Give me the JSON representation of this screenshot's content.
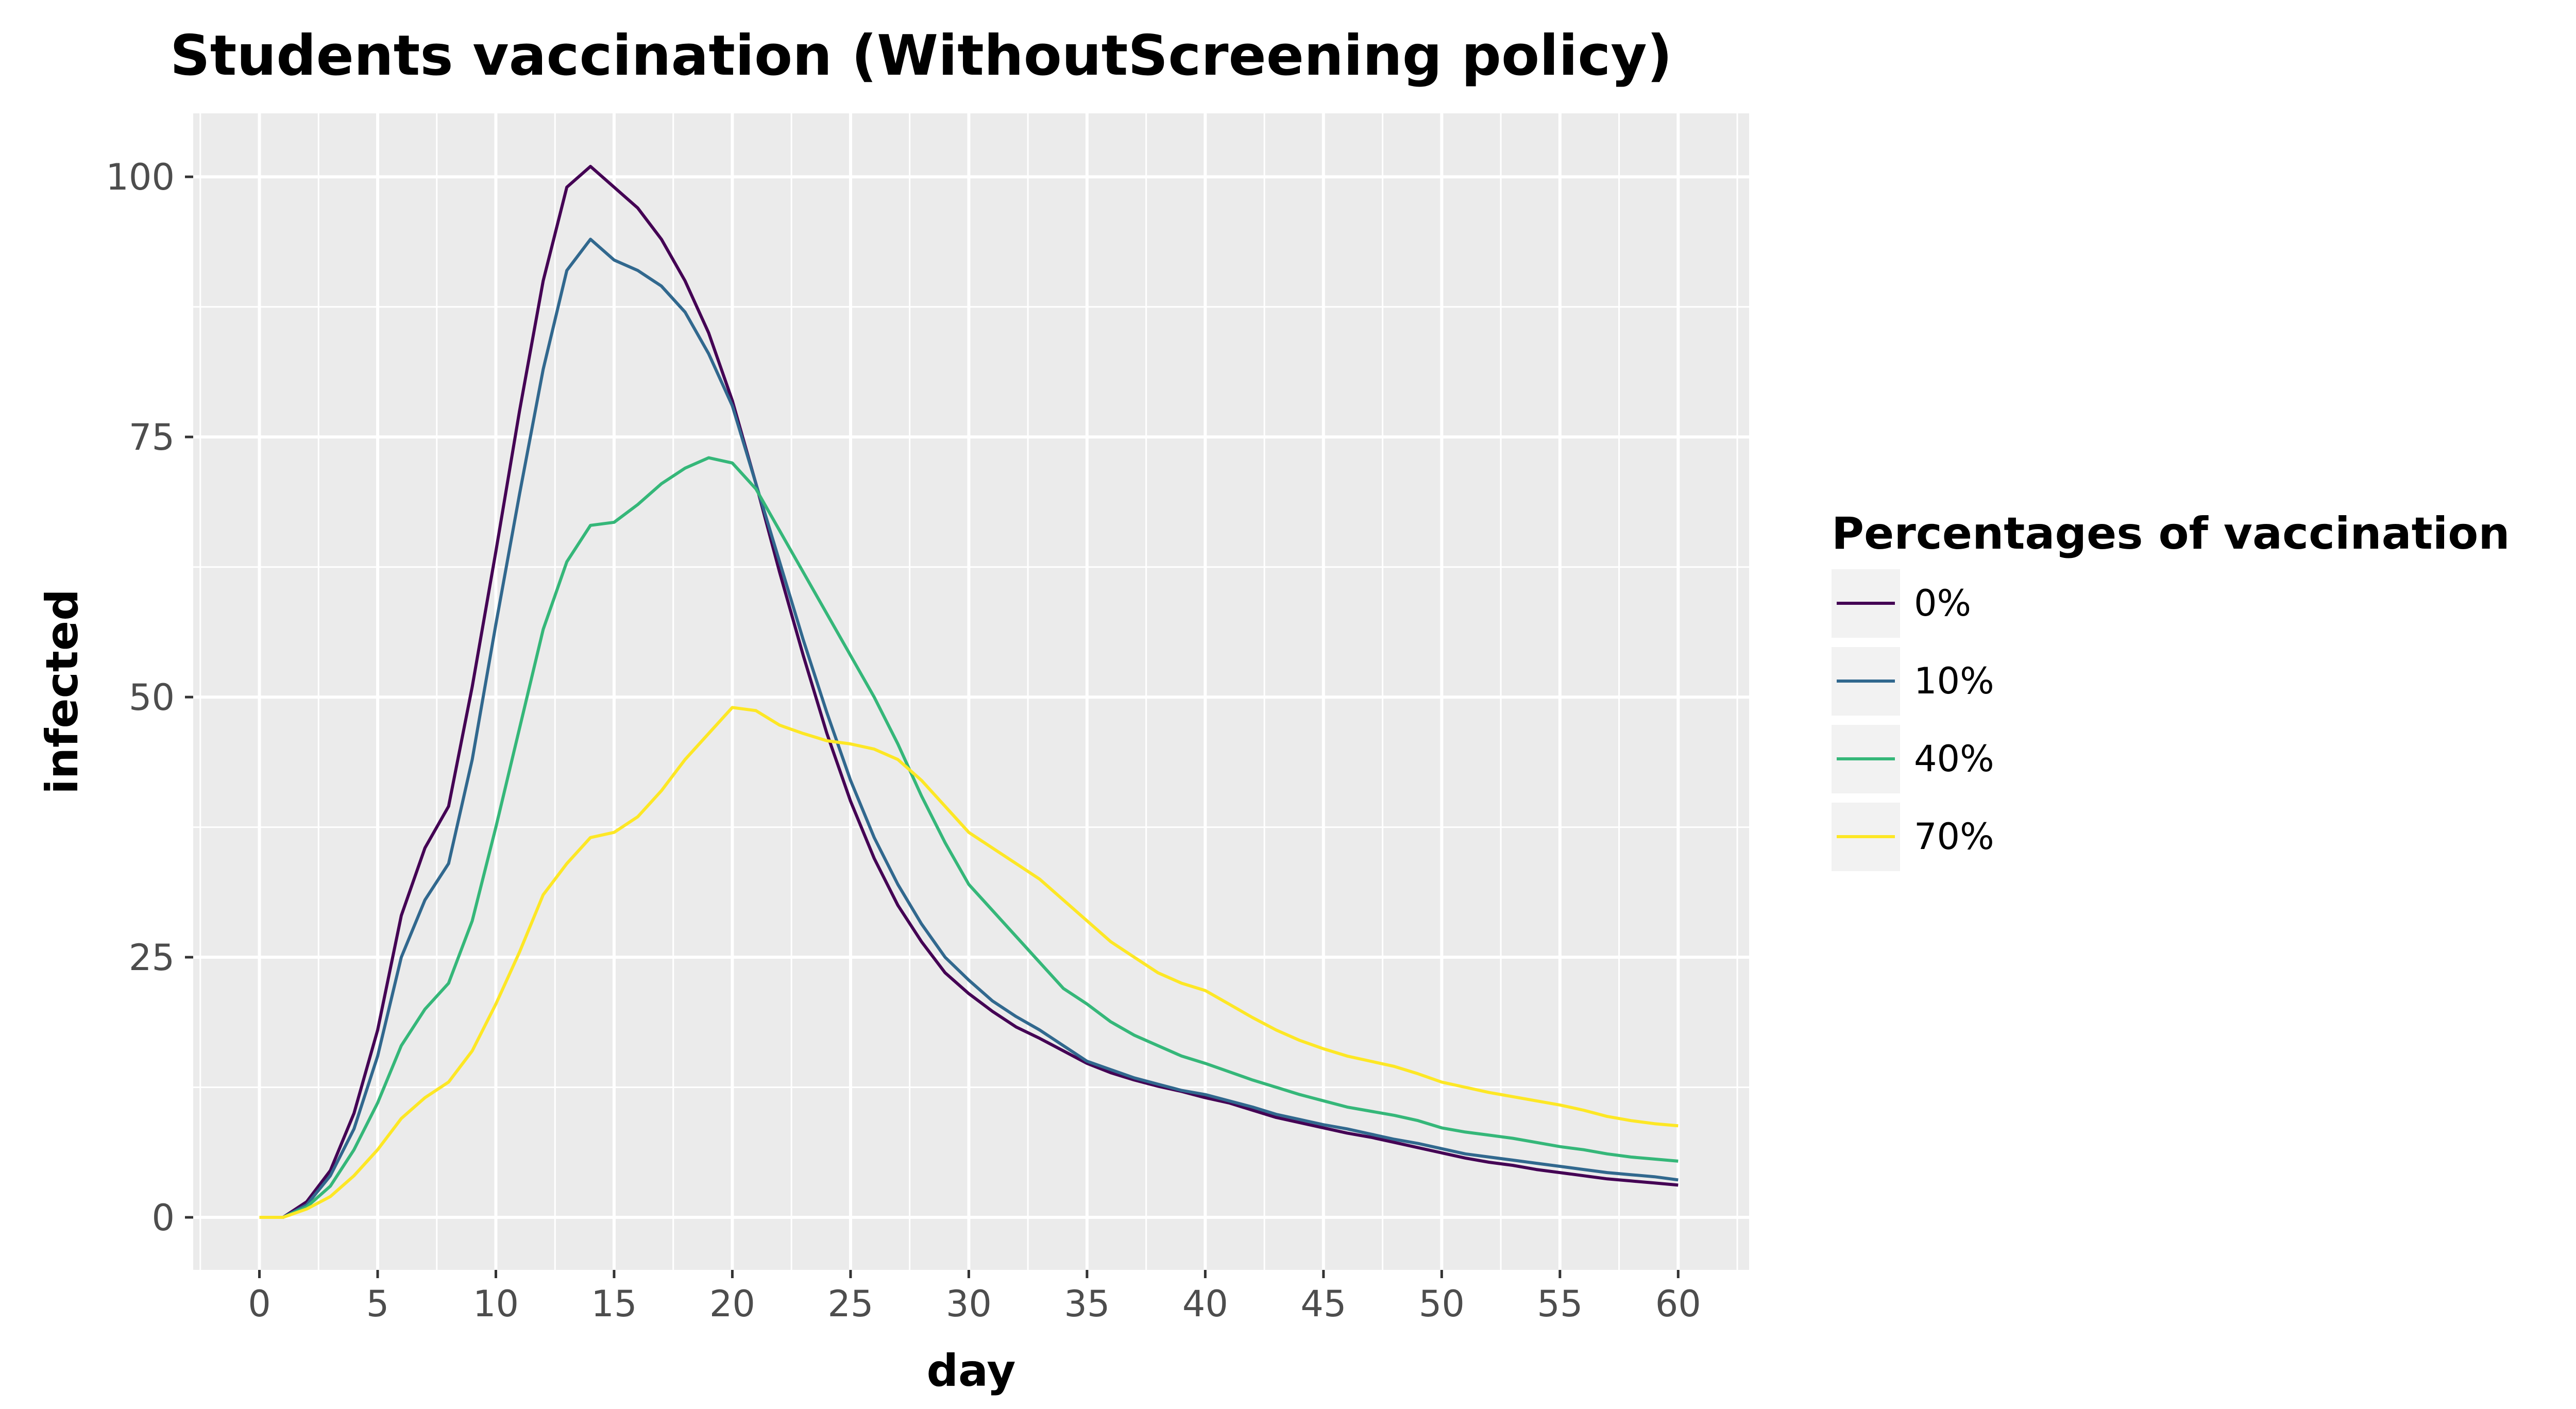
{
  "chart_data": {
    "type": "line",
    "title": "Students vaccination (WithoutScreening policy)",
    "xlabel": "day",
    "ylabel": "infected",
    "xlim": [
      -2.8,
      63.0
    ],
    "ylim": [
      -5.05,
      106.1
    ],
    "x_ticks": [
      0,
      5,
      10,
      15,
      20,
      25,
      30,
      35,
      40,
      45,
      50,
      55,
      60
    ],
    "y_ticks": [
      0,
      25,
      50,
      75,
      100
    ],
    "grid": true,
    "legend": {
      "title": "Percentages of vaccination",
      "position": "right"
    },
    "x": [
      0,
      1,
      2,
      3,
      4,
      5,
      6,
      7,
      8,
      9,
      10,
      11,
      12,
      13,
      14,
      15,
      16,
      17,
      18,
      19,
      20,
      21,
      22,
      23,
      24,
      25,
      26,
      27,
      28,
      29,
      30,
      31,
      32,
      33,
      34,
      35,
      36,
      37,
      38,
      39,
      40,
      41,
      42,
      43,
      44,
      45,
      46,
      47,
      48,
      49,
      50,
      51,
      52,
      53,
      54,
      55,
      56,
      57,
      58,
      59,
      60
    ],
    "series": [
      {
        "name": "0%",
        "color": "#440154",
        "values": [
          0,
          0,
          1.5,
          4.5,
          10,
          18,
          29,
          35.5,
          39.5,
          51,
          64,
          77.5,
          90,
          99,
          101,
          99,
          97,
          94,
          90,
          85,
          78.5,
          70.5,
          62,
          54,
          46.5,
          40,
          34.5,
          30,
          26.5,
          23.5,
          21.5,
          19.8,
          18.3,
          17.2,
          16,
          14.8,
          13.9,
          13.2,
          12.6,
          12.1,
          11.5,
          11,
          10.3,
          9.6,
          9.1,
          8.6,
          8.1,
          7.7,
          7.2,
          6.7,
          6.2,
          5.7,
          5.3,
          5,
          4.6,
          4.3,
          4,
          3.7,
          3.5,
          3.3,
          3.1
        ]
      },
      {
        "name": "10%",
        "color": "#31688e",
        "values": [
          0,
          0,
          1.2,
          4,
          8.5,
          15.5,
          25,
          30.5,
          34,
          44,
          57,
          69.5,
          81.5,
          91,
          94,
          92,
          91,
          89.5,
          87,
          83,
          78,
          70.5,
          63,
          55.5,
          48.5,
          42,
          36.5,
          32,
          28.2,
          25,
          22.8,
          20.8,
          19.3,
          18,
          16.5,
          15,
          14.2,
          13.4,
          12.8,
          12.2,
          11.8,
          11.2,
          10.6,
          9.9,
          9.4,
          8.9,
          8.5,
          8,
          7.5,
          7.1,
          6.6,
          6.1,
          5.8,
          5.5,
          5.2,
          4.9,
          4.6,
          4.3,
          4.1,
          3.9,
          3.6
        ]
      },
      {
        "name": "40%",
        "color": "#35b779",
        "values": [
          0,
          0,
          1,
          3,
          6.5,
          11,
          16.5,
          20,
          22.5,
          28.5,
          37.5,
          47,
          56.5,
          63,
          66.5,
          66.8,
          68.5,
          70.5,
          72,
          73,
          72.5,
          70,
          66,
          62,
          58,
          54,
          50,
          45.5,
          40.5,
          36,
          32,
          29.5,
          27,
          24.5,
          22,
          20.5,
          18.8,
          17.5,
          16.5,
          15.5,
          14.8,
          14,
          13.2,
          12.5,
          11.8,
          11.2,
          10.6,
          10.2,
          9.8,
          9.3,
          8.6,
          8.2,
          7.9,
          7.6,
          7.2,
          6.8,
          6.5,
          6.1,
          5.8,
          5.6,
          5.4
        ]
      },
      {
        "name": "70%",
        "color": "#fde725",
        "values": [
          0,
          0,
          0.8,
          2,
          4,
          6.5,
          9.5,
          11.5,
          13,
          16,
          20.5,
          25.5,
          31,
          34,
          36.5,
          37,
          38.5,
          41,
          44,
          46.5,
          49,
          48.7,
          47.3,
          46.5,
          45.8,
          45.5,
          45,
          44,
          42,
          39.5,
          37,
          35.5,
          34,
          32.5,
          30.5,
          28.5,
          26.5,
          25,
          23.5,
          22.5,
          21.8,
          20.5,
          19.2,
          18,
          17,
          16.2,
          15.5,
          15,
          14.5,
          13.8,
          13,
          12.5,
          12,
          11.6,
          11.2,
          10.8,
          10.3,
          9.7,
          9.3,
          9,
          8.8
        ]
      }
    ]
  }
}
